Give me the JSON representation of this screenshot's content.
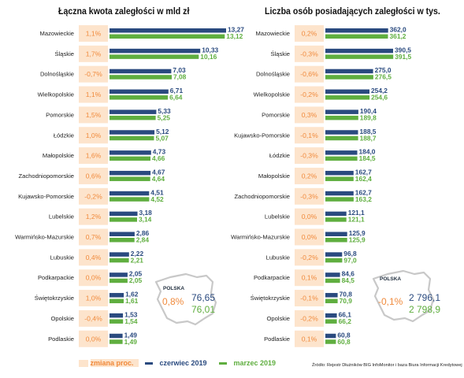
{
  "colors": {
    "june": "#2a4a7f",
    "march": "#5fae3f",
    "change_bg": "#fde4cc",
    "change_text": "#f08a3c",
    "map_outline": "#c8c8c8"
  },
  "legend": {
    "change_label": "zmiana proc.",
    "june_label": "czerwiec 2019",
    "march_label": "marzec 2019"
  },
  "source": "Źródło: Rejestr Dłużników BIG InfoMonitor i baza Biura Informacji Kredytowej",
  "chart_data": [
    {
      "type": "bar",
      "orientation": "horizontal",
      "title": "Łączna kwota zaległości w mld zł",
      "categories": [
        "Mazowieckie",
        "Śląskie",
        "Dolnośląskie",
        "Wielkopolskie",
        "Pomorskie",
        "Łódzkie",
        "Małopolskie",
        "Zachodniopomorskie",
        "Kujawsko-Pomorskie",
        "Lubelskie",
        "Warmińsko-Mazurskie",
        "Lubuskie",
        "Podkarpackie",
        "Świętokrzyskie",
        "Opolskie",
        "Podlaskie"
      ],
      "change": [
        "1,1%",
        "1,7%",
        "-0,7%",
        "1,1%",
        "1,5%",
        "1,0%",
        "1,6%",
        "0,6%",
        "-0,2%",
        "1,2%",
        "0,7%",
        "0,4%",
        "0,0%",
        "1,0%",
        "-0,4%",
        "0,0%"
      ],
      "series": [
        {
          "name": "czerwiec 2019",
          "values": [
            13.27,
            10.33,
            7.03,
            6.71,
            5.33,
            5.12,
            4.73,
            4.67,
            4.51,
            3.18,
            2.86,
            2.22,
            2.05,
            1.62,
            1.53,
            1.49
          ],
          "labels": [
            "13,27",
            "10,33",
            "7,03",
            "6,71",
            "5,33",
            "5,12",
            "4,73",
            "4,67",
            "4,51",
            "3,18",
            "2,86",
            "2,22",
            "2,05",
            "1,62",
            "1,53",
            "1,49"
          ]
        },
        {
          "name": "marzec 2019",
          "values": [
            13.12,
            10.16,
            7.08,
            6.64,
            5.25,
            5.07,
            4.66,
            4.64,
            4.52,
            3.14,
            2.84,
            2.21,
            2.05,
            1.61,
            1.54,
            1.49
          ],
          "labels": [
            "13,12",
            "10,16",
            "7,08",
            "6,64",
            "5,25",
            "5,07",
            "4,66",
            "4,64",
            "4,52",
            "3,14",
            "2,84",
            "2,21",
            "2,05",
            "1,61",
            "1,54",
            "1,49"
          ]
        }
      ],
      "total": {
        "label": "POLSKA",
        "change": "0,8%",
        "june": "76,65",
        "march": "76,01"
      }
    },
    {
      "type": "bar",
      "orientation": "horizontal",
      "title": "Liczba osób posiadających zaległości w tys.",
      "categories": [
        "Mazowieckie",
        "Śląskie",
        "Dolnośląskie",
        "Wielkopolskie",
        "Pomorskie",
        "Kujawsko-Pomorskie",
        "Łódzkie",
        "Małopolskie",
        "Zachodniopomorskie",
        "Lubelskie",
        "Warmińsko-Mazurskie",
        "Lubuskie",
        "Podkarpackie",
        "Świętokrzyskie",
        "Opolskie",
        "Podlaskie"
      ],
      "change": [
        "0,2%",
        "-0,3%",
        "-0,6%",
        "-0,2%",
        "0,3%",
        "-0,1%",
        "-0,3%",
        "0,2%",
        "-0,3%",
        "0,0%",
        "0,0%",
        "-0,2%",
        "0,1%",
        "-0,1%",
        "-0,2%",
        "0,1%"
      ],
      "series": [
        {
          "name": "czerwiec 2019",
          "values": [
            362.0,
            390.5,
            275.0,
            254.2,
            190.4,
            188.5,
            184.0,
            162.7,
            162.7,
            121.1,
            125.9,
            96.8,
            84.6,
            70.8,
            66.1,
            60.8
          ],
          "labels": [
            "362,0",
            "390,5",
            "275,0",
            "254,2",
            "190,4",
            "188,5",
            "184,0",
            "162,7",
            "162,7",
            "121,1",
            "125,9",
            "96,8",
            "84,6",
            "70,8",
            "66,1",
            "60,8"
          ]
        },
        {
          "name": "marzec 2019",
          "values": [
            361.2,
            391.5,
            276.5,
            254.6,
            189.8,
            188.7,
            184.5,
            162.4,
            163.2,
            121.1,
            125.9,
            97.0,
            84.5,
            70.9,
            66.2,
            60.8
          ],
          "labels": [
            "361,2",
            "391,5",
            "276,5",
            "254,6",
            "189,8",
            "188,7",
            "184,5",
            "162,4",
            "163,2",
            "121,1",
            "125,9",
            "97,0",
            "84,5",
            "70,9",
            "66,2",
            "60,8"
          ]
        }
      ],
      "total": {
        "label": "POLSKA",
        "change": "-0,1%",
        "june": "2 796,1",
        "march": "2 798,9"
      }
    }
  ]
}
